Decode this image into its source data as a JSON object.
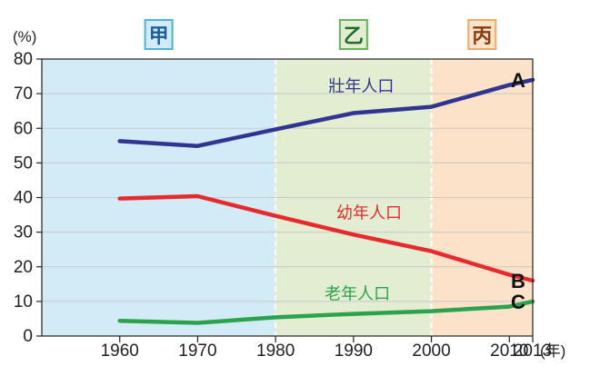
{
  "chart_data": {
    "type": "line",
    "ylabel": "(%)",
    "xunit": "(年)",
    "ylim": [
      0,
      80
    ],
    "yticks": [
      0,
      10,
      20,
      30,
      40,
      50,
      60,
      70,
      80
    ],
    "xlim": [
      1950,
      2013
    ],
    "xticks": [
      1960,
      1970,
      1980,
      1990,
      2000,
      2010,
      2013
    ],
    "periods": [
      {
        "label": "甲",
        "start": 1950,
        "end": 1980,
        "color": "#d2ebf7",
        "border": "#4bb2e0",
        "text_color": "#1a5f9e"
      },
      {
        "label": "乙",
        "start": 1980,
        "end": 2000,
        "color": "#e2edd2",
        "border": "#63b556",
        "text_color": "#1f6b2c"
      },
      {
        "label": "丙",
        "start": 2000,
        "end": 2013,
        "color": "#fbe2c8",
        "border": "#f0a868",
        "text_color": "#8a3c10"
      }
    ],
    "series": [
      {
        "name": "壯年人口",
        "end_label": "A",
        "color": "#2f3590",
        "x": [
          1960,
          1970,
          1980,
          1990,
          2000,
          2010,
          2013
        ],
        "y": [
          56.3,
          54.9,
          59.7,
          64.4,
          66.2,
          72.5,
          74.0
        ],
        "label_at": [
          1991,
          70.5
        ]
      },
      {
        "name": "幼年人口",
        "end_label": "B",
        "color": "#e62a2d",
        "x": [
          1960,
          1970,
          1980,
          1990,
          2000,
          2010,
          2013
        ],
        "y": [
          39.7,
          40.4,
          34.7,
          29.3,
          24.5,
          17.7,
          16.0
        ],
        "label_at": [
          1992,
          34.0
        ]
      },
      {
        "name": "老年人口",
        "end_label": "C",
        "color": "#2aa34c",
        "x": [
          1960,
          1970,
          1980,
          1990,
          2000,
          2010,
          2013
        ],
        "y": [
          4.4,
          3.8,
          5.4,
          6.4,
          7.2,
          8.5,
          10.0
        ],
        "label_at": [
          1990.5,
          10.6
        ]
      }
    ]
  }
}
